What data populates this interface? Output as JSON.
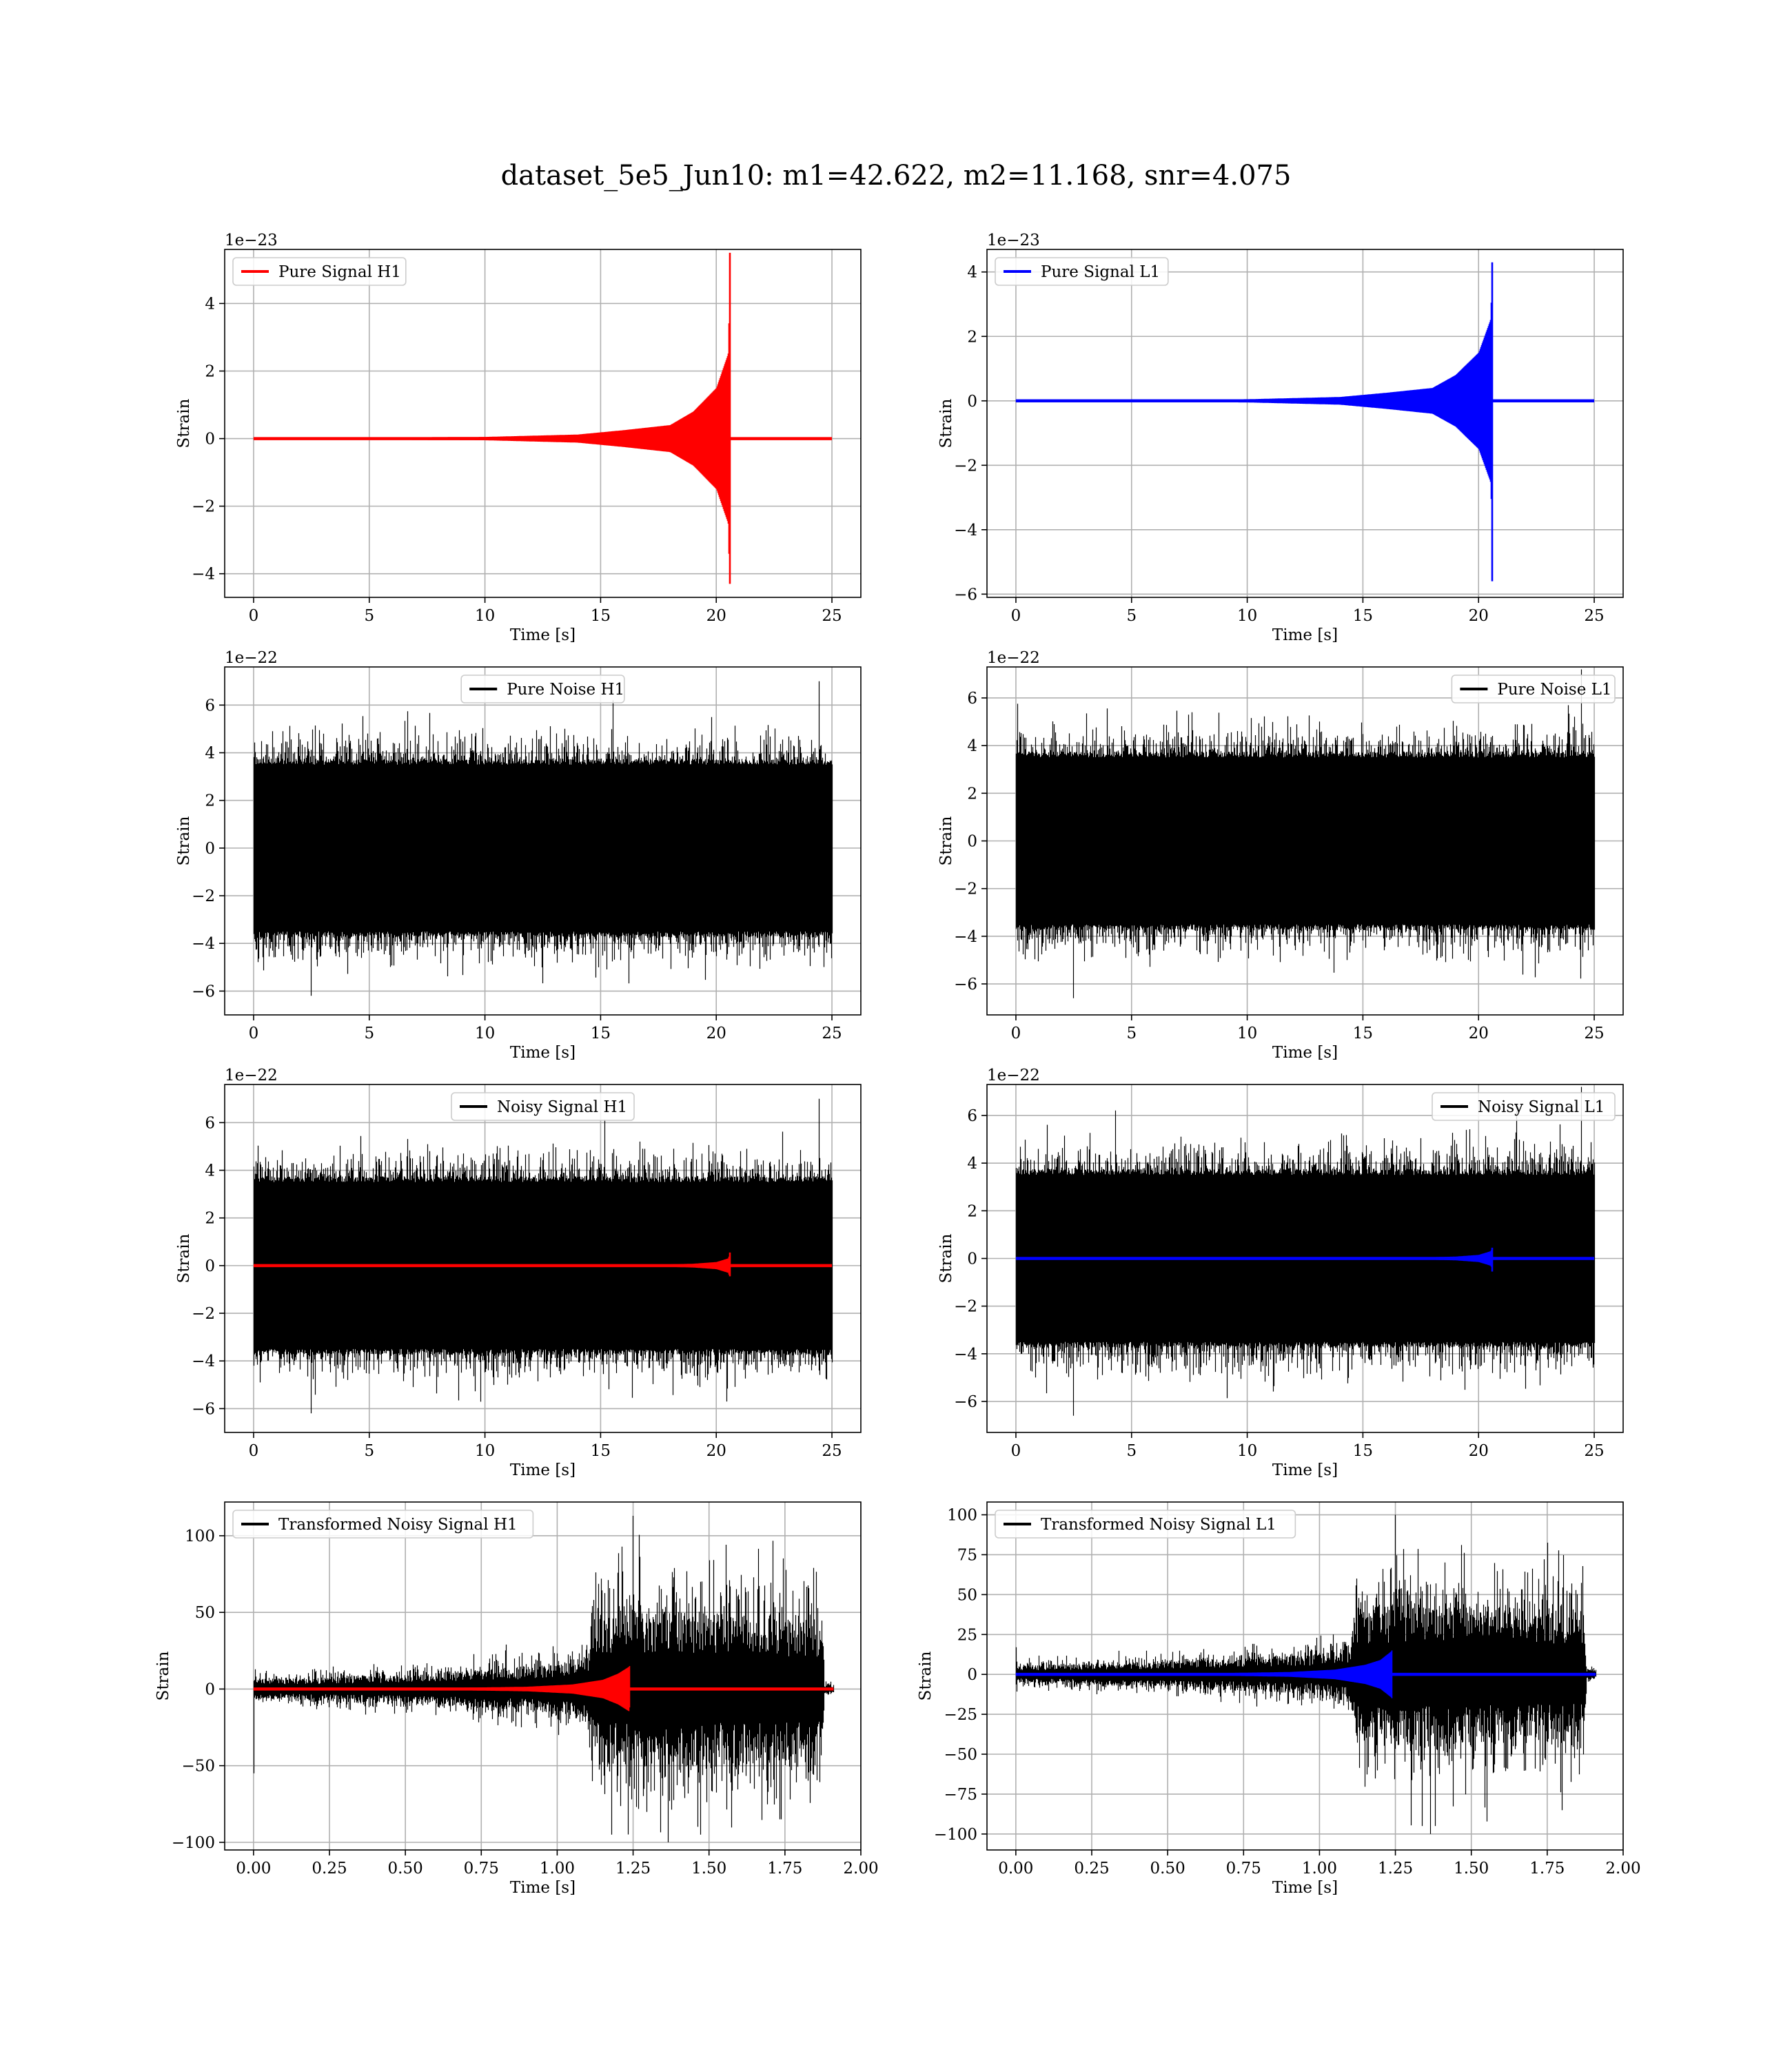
{
  "figure_title": "dataset_5e5_Jun10: m1=42.622, m2=11.168, snr=4.075",
  "colors": {
    "signal_H1": "#ff0000",
    "signal_L1": "#0000ff",
    "noise": "#000000"
  },
  "chart_data": [
    {
      "id": "pure-signal-h1",
      "type": "line",
      "xlabel": "Time [s]",
      "ylabel": "Strain",
      "offset_text": "1e−23",
      "xlim": [
        -1.25,
        26.25
      ],
      "ylim": [
        -4.7,
        5.6
      ],
      "xticks": [
        0,
        5,
        10,
        15,
        20,
        25
      ],
      "xtick_labels": [
        "0",
        "5",
        "10",
        "15",
        "20",
        "25"
      ],
      "yticks": [
        -4,
        -2,
        0,
        2,
        4
      ],
      "ytick_labels": [
        "−4",
        "−2",
        "0",
        "2",
        "4"
      ],
      "legend_loc": "upper left",
      "series": [
        {
          "name": "Pure Signal H1",
          "kind": "chirp",
          "color": "#ff0000",
          "t_start": 0,
          "t_merger": 20.6,
          "t_end": 25,
          "envelope": [
            [
              0,
              0.02
            ],
            [
              10,
              0.05
            ],
            [
              14,
              0.12
            ],
            [
              16,
              0.25
            ],
            [
              18,
              0.4
            ],
            [
              19,
              0.8
            ],
            [
              20,
              1.5
            ],
            [
              20.5,
              2.5
            ],
            [
              20.6,
              5.5
            ]
          ],
          "min_at_merger": -4.3
        }
      ]
    },
    {
      "id": "pure-signal-l1",
      "type": "line",
      "xlabel": "Time [s]",
      "ylabel": "Strain",
      "offset_text": "1e−23",
      "xlim": [
        -1.25,
        26.25
      ],
      "ylim": [
        -6.1,
        4.7
      ],
      "xticks": [
        0,
        5,
        10,
        15,
        20,
        25
      ],
      "xtick_labels": [
        "0",
        "5",
        "10",
        "15",
        "20",
        "25"
      ],
      "yticks": [
        -6,
        -4,
        -2,
        0,
        2,
        4
      ],
      "ytick_labels": [
        "−6",
        "−4",
        "−2",
        "0",
        "2",
        "4"
      ],
      "legend_loc": "upper left",
      "series": [
        {
          "name": "Pure Signal L1",
          "kind": "chirp",
          "color": "#0000ff",
          "t_start": 0,
          "t_merger": 20.6,
          "t_end": 25,
          "envelope": [
            [
              0,
              0.02
            ],
            [
              10,
              0.05
            ],
            [
              14,
              0.12
            ],
            [
              16,
              0.25
            ],
            [
              18,
              0.4
            ],
            [
              19,
              0.8
            ],
            [
              20,
              1.5
            ],
            [
              20.5,
              2.5
            ],
            [
              20.6,
              4.3
            ]
          ],
          "min_at_merger": -5.6
        }
      ]
    },
    {
      "id": "pure-noise-h1",
      "type": "line",
      "xlabel": "Time [s]",
      "ylabel": "Strain",
      "offset_text": "1e−22",
      "xlim": [
        -1.25,
        26.25
      ],
      "ylim": [
        -7.0,
        7.6
      ],
      "xticks": [
        0,
        5,
        10,
        15,
        20,
        25
      ],
      "xtick_labels": [
        "0",
        "5",
        "10",
        "15",
        "20",
        "25"
      ],
      "yticks": [
        -6,
        -4,
        -2,
        0,
        2,
        4,
        6
      ],
      "ytick_labels": [
        "−6",
        "−4",
        "−2",
        "0",
        "2",
        "4",
        "6"
      ],
      "legend_loc": "upper center",
      "series": [
        {
          "name": "Pure Noise H1",
          "kind": "noise",
          "color": "#000000",
          "t_start": 0,
          "t_end": 25,
          "core": 3.5,
          "peak_max": 7.0,
          "peak_min": -6.2
        }
      ]
    },
    {
      "id": "pure-noise-l1",
      "type": "line",
      "xlabel": "Time [s]",
      "ylabel": "Strain",
      "offset_text": "1e−22",
      "xlim": [
        -1.25,
        26.25
      ],
      "ylim": [
        -7.3,
        7.3
      ],
      "xticks": [
        0,
        5,
        10,
        15,
        20,
        25
      ],
      "xtick_labels": [
        "0",
        "5",
        "10",
        "15",
        "20",
        "25"
      ],
      "yticks": [
        -6,
        -4,
        -2,
        0,
        2,
        4,
        6
      ],
      "ytick_labels": [
        "−6",
        "−4",
        "−2",
        "0",
        "2",
        "4",
        "6"
      ],
      "legend_loc": "upper right",
      "series": [
        {
          "name": "Pure Noise L1",
          "kind": "noise",
          "color": "#000000",
          "t_start": 0,
          "t_end": 25,
          "core": 3.5,
          "peak_max": 7.2,
          "peak_min": -6.6
        }
      ]
    },
    {
      "id": "noisy-signal-h1",
      "type": "line",
      "xlabel": "Time [s]",
      "ylabel": "Strain",
      "offset_text": "1e−22",
      "xlim": [
        -1.25,
        26.25
      ],
      "ylim": [
        -7.0,
        7.6
      ],
      "xticks": [
        0,
        5,
        10,
        15,
        20,
        25
      ],
      "xtick_labels": [
        "0",
        "5",
        "10",
        "15",
        "20",
        "25"
      ],
      "yticks": [
        -6,
        -4,
        -2,
        0,
        2,
        4,
        6
      ],
      "ytick_labels": [
        "−6",
        "−4",
        "−2",
        "0",
        "2",
        "4",
        "6"
      ],
      "legend_loc": "upper center",
      "series": [
        {
          "name": "Noisy Signal H1",
          "kind": "noise",
          "color": "#000000",
          "t_start": 0,
          "t_end": 25,
          "core": 3.5,
          "peak_max": 7.0,
          "peak_min": -6.2
        },
        {
          "name": "",
          "kind": "chirp",
          "color": "#ff0000",
          "t_start": 0,
          "t_merger": 20.6,
          "t_end": 25,
          "envelope": [
            [
              0,
              0.002
            ],
            [
              14,
              0.01
            ],
            [
              17,
              0.03
            ],
            [
              19,
              0.08
            ],
            [
              20,
              0.15
            ],
            [
              20.5,
              0.3
            ],
            [
              20.6,
              0.55
            ]
          ],
          "min_at_merger": -0.45
        }
      ]
    },
    {
      "id": "noisy-signal-l1",
      "type": "line",
      "xlabel": "Time [s]",
      "ylabel": "Strain",
      "offset_text": "1e−22",
      "xlim": [
        -1.25,
        26.25
      ],
      "ylim": [
        -7.3,
        7.3
      ],
      "xticks": [
        0,
        5,
        10,
        15,
        20,
        25
      ],
      "xtick_labels": [
        "0",
        "5",
        "10",
        "15",
        "20",
        "25"
      ],
      "yticks": [
        -6,
        -4,
        -2,
        0,
        2,
        4,
        6
      ],
      "ytick_labels": [
        "−6",
        "−4",
        "−2",
        "0",
        "2",
        "4",
        "6"
      ],
      "legend_loc": "upper right",
      "series": [
        {
          "name": "Noisy Signal L1",
          "kind": "noise",
          "color": "#000000",
          "t_start": 0,
          "t_end": 25,
          "core": 3.5,
          "peak_max": 7.2,
          "peak_min": -6.6
        },
        {
          "name": "",
          "kind": "chirp",
          "color": "#0000ff",
          "t_start": 0,
          "t_merger": 20.6,
          "t_end": 25,
          "envelope": [
            [
              0,
              0.002
            ],
            [
              14,
              0.01
            ],
            [
              17,
              0.03
            ],
            [
              19,
              0.08
            ],
            [
              20,
              0.15
            ],
            [
              20.5,
              0.3
            ],
            [
              20.6,
              0.45
            ]
          ],
          "min_at_merger": -0.55
        }
      ]
    },
    {
      "id": "transformed-noisy-signal-h1",
      "type": "line",
      "xlabel": "Time [s]",
      "ylabel": "Strain",
      "offset_text": "",
      "xlim": [
        -0.095,
        2.0
      ],
      "ylim": [
        -105,
        122
      ],
      "xticks": [
        0,
        0.25,
        0.5,
        0.75,
        1.0,
        1.25,
        1.5,
        1.75,
        2.0
      ],
      "xtick_labels": [
        "0.00",
        "0.25",
        "0.50",
        "0.75",
        "1.00",
        "1.25",
        "1.50",
        "1.75",
        "2.00"
      ],
      "yticks": [
        -100,
        -50,
        0,
        50,
        100
      ],
      "ytick_labels": [
        "−100",
        "−50",
        "0",
        "50",
        "100"
      ],
      "legend_loc": "upper left",
      "series": [
        {
          "name": "Transformed Noisy Signal H1",
          "kind": "whitened",
          "color": "#000000",
          "t_start": 0,
          "t_end": 1.91,
          "envelope": [
            [
              0,
              8
            ],
            [
              0.5,
              12
            ],
            [
              1.0,
              20
            ],
            [
              1.1,
              28
            ],
            [
              1.12,
              60
            ],
            [
              1.25,
              65
            ],
            [
              1.87,
              60
            ],
            [
              1.88,
              4
            ],
            [
              1.91,
              3
            ]
          ],
          "peak_max": 113,
          "peak_min": -100,
          "start_spike": -55
        },
        {
          "name": "",
          "kind": "chirp",
          "color": "#ff0000",
          "t_start": 0,
          "t_merger": 1.24,
          "t_end": 1.91,
          "envelope": [
            [
              0,
              0.3
            ],
            [
              0.6,
              0.6
            ],
            [
              0.9,
              1.5
            ],
            [
              1.05,
              3
            ],
            [
              1.15,
              6
            ],
            [
              1.2,
              10
            ],
            [
              1.24,
              15
            ]
          ],
          "min_at_merger": -12
        }
      ]
    },
    {
      "id": "transformed-noisy-signal-l1",
      "type": "line",
      "xlabel": "Time [s]",
      "ylabel": "Strain",
      "offset_text": "",
      "xlim": [
        -0.095,
        2.0
      ],
      "ylim": [
        -110,
        108
      ],
      "xticks": [
        0,
        0.25,
        0.5,
        0.75,
        1.0,
        1.25,
        1.5,
        1.75,
        2.0
      ],
      "xtick_labels": [
        "0.00",
        "0.25",
        "0.50",
        "0.75",
        "1.00",
        "1.25",
        "1.50",
        "1.75",
        "2.00"
      ],
      "yticks": [
        -100,
        -75,
        -50,
        -25,
        0,
        25,
        50,
        75,
        100
      ],
      "ytick_labels": [
        "−100",
        "−75",
        "−50",
        "−25",
        "0",
        "25",
        "50",
        "75",
        "100"
      ],
      "legend_loc": "upper left",
      "series": [
        {
          "name": "Transformed Noisy Signal L1",
          "kind": "whitened",
          "color": "#000000",
          "t_start": 0,
          "t_end": 1.91,
          "envelope": [
            [
              0,
              7
            ],
            [
              0.5,
              10
            ],
            [
              1.0,
              16
            ],
            [
              1.1,
              22
            ],
            [
              1.12,
              52
            ],
            [
              1.25,
              58
            ],
            [
              1.87,
              52
            ],
            [
              1.88,
              4
            ],
            [
              1.91,
              3
            ]
          ],
          "peak_max": 100,
          "peak_min": -100,
          "start_spike": 17
        },
        {
          "name": "",
          "kind": "chirp",
          "color": "#0000ff",
          "t_start": 0,
          "t_merger": 1.24,
          "t_end": 1.91,
          "envelope": [
            [
              0,
              0.3
            ],
            [
              0.6,
              0.6
            ],
            [
              0.9,
              1.5
            ],
            [
              1.05,
              3
            ],
            [
              1.15,
              6
            ],
            [
              1.2,
              9
            ],
            [
              1.24,
              15
            ]
          ],
          "min_at_merger": -15
        }
      ]
    }
  ]
}
